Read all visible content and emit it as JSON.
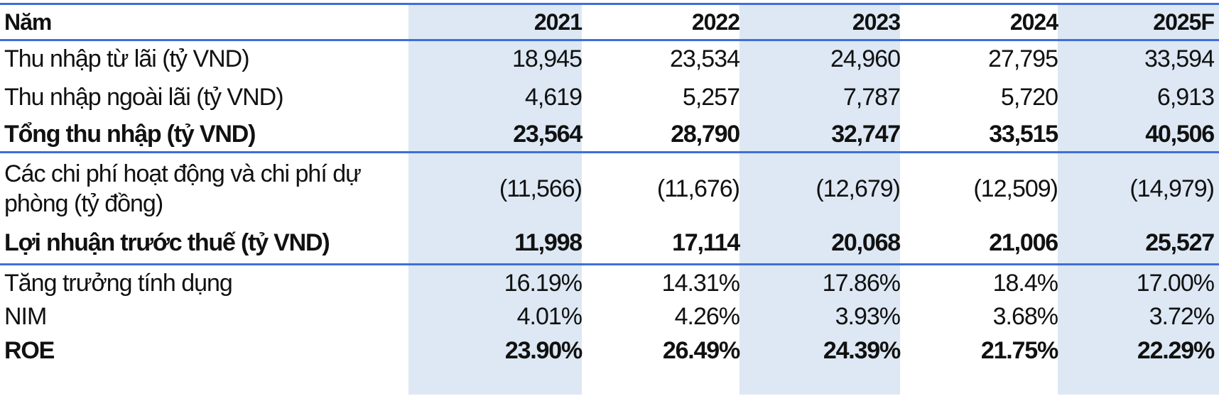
{
  "table": {
    "header": {
      "label": "Năm",
      "years": [
        "2021",
        "2022",
        "2023",
        "2024",
        "2025F"
      ]
    },
    "rows": [
      {
        "label": "Thu nhập từ lãi (tỷ VND)",
        "values": [
          "18,945",
          "23,534",
          "24,960",
          "27,795",
          "33,594"
        ],
        "bold": false
      },
      {
        "label": "Thu nhập ngoài lãi (tỷ VND)",
        "values": [
          "4,619",
          "5,257",
          "7,787",
          "5,720",
          "6,913"
        ],
        "bold": false
      },
      {
        "label": "Tổng thu nhập (tỷ VND)",
        "values": [
          "23,564",
          "28,790",
          "32,747",
          "33,515",
          "40,506"
        ],
        "bold": true
      },
      {
        "label": "Các chi phí hoạt động và chi phí dự phòng (tỷ đồng)",
        "values": [
          "(11,566)",
          "(11,676)",
          "(12,679)",
          "(12,509)",
          "(14,979)"
        ],
        "bold": false
      },
      {
        "label": "Lợi nhuận trước thuế (tỷ VND)",
        "values": [
          "11,998",
          "17,114",
          "20,068",
          "21,006",
          "25,527"
        ],
        "bold": true
      },
      {
        "label": "Tăng trưởng tính dụng",
        "values": [
          "16.19%",
          "14.31%",
          "17.86%",
          "18.4%",
          "17.00%"
        ],
        "bold": false
      },
      {
        "label": "NIM",
        "values": [
          "4.01%",
          "4.26%",
          "3.93%",
          "3.68%",
          "3.72%"
        ],
        "bold": false
      },
      {
        "label": "ROE",
        "values": [
          "23.90%",
          "26.49%",
          "24.39%",
          "21.75%",
          "22.29%"
        ],
        "bold": true
      }
    ]
  },
  "colors": {
    "rule": "#3e6fd8",
    "shade": "#dde8f4"
  }
}
